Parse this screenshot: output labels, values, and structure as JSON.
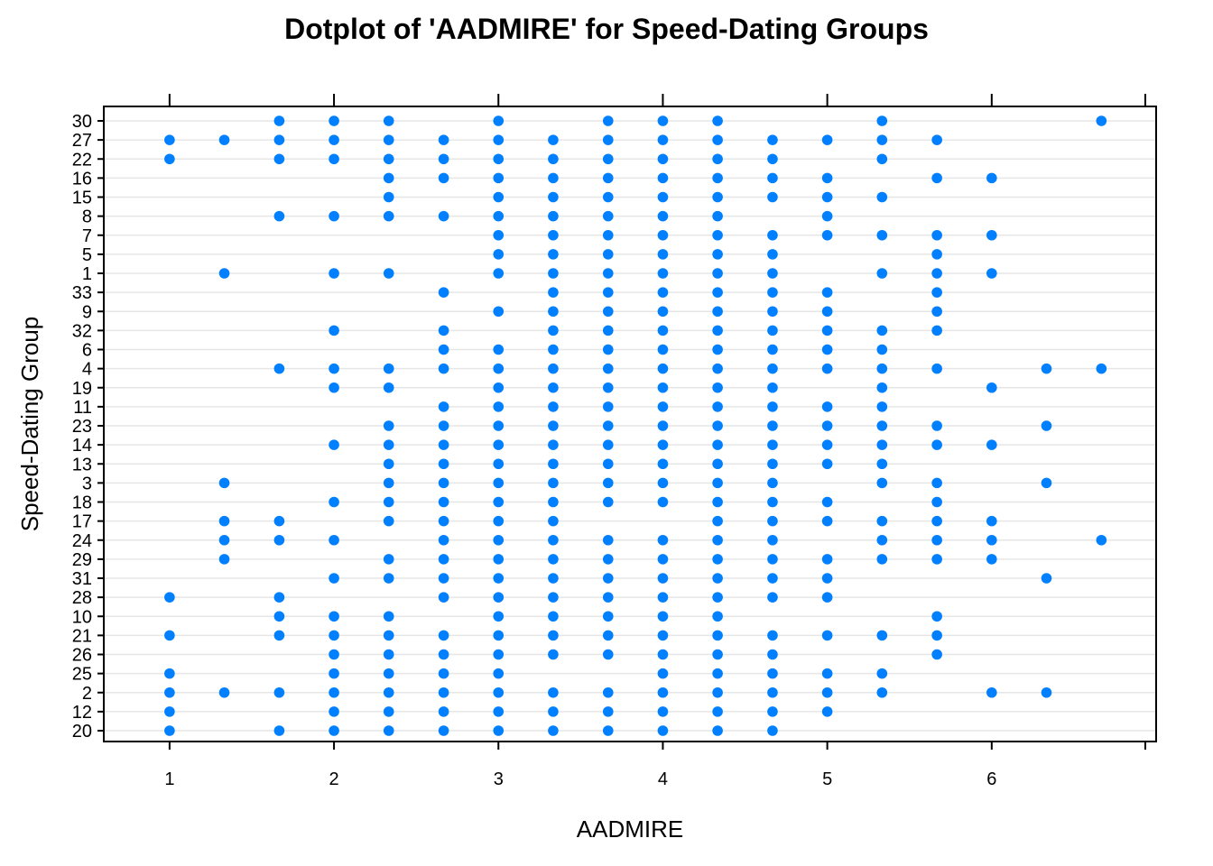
{
  "chart_data": {
    "type": "scatter",
    "title": "Dotplot of 'AADMIRE' for Speed-Dating Groups",
    "xlabel": "AADMIRE",
    "ylabel": "Speed-Dating Group",
    "xlim": [
      0.6,
      7.0
    ],
    "x_ticks": [
      1,
      2,
      3,
      4,
      5,
      6
    ],
    "grid": "horizontal",
    "point_color": "#0080ff",
    "categories": [
      "30",
      "27",
      "22",
      "16",
      "15",
      "8",
      "7",
      "5",
      "1",
      "33",
      "9",
      "32",
      "6",
      "4",
      "19",
      "11",
      "23",
      "14",
      "13",
      "3",
      "18",
      "17",
      "24",
      "29",
      "31",
      "28",
      "10",
      "21",
      "26",
      "25",
      "2",
      "12",
      "20"
    ],
    "series": [
      {
        "group": "30",
        "values": [
          1.667,
          2,
          2.333,
          3,
          3.667,
          4,
          4.333,
          5.333,
          6.667
        ]
      },
      {
        "group": "27",
        "values": [
          1,
          1.333,
          1.667,
          2,
          2.333,
          2.667,
          3,
          3.333,
          3.667,
          4,
          4.333,
          4.667,
          5,
          5.333,
          5.667
        ]
      },
      {
        "group": "22",
        "values": [
          1,
          1.667,
          2,
          2.333,
          2.667,
          3,
          3.333,
          3.667,
          4,
          4.333,
          4.667,
          5.333
        ]
      },
      {
        "group": "16",
        "values": [
          2.333,
          2.667,
          3,
          3.333,
          3.667,
          4,
          4.333,
          4.667,
          5,
          5.667,
          6
        ]
      },
      {
        "group": "15",
        "values": [
          2.333,
          3,
          3.333,
          3.667,
          4,
          4.333,
          4.667,
          5,
          5.333
        ]
      },
      {
        "group": "8",
        "values": [
          1.667,
          2,
          2.333,
          2.667,
          3,
          3.333,
          3.667,
          4,
          4.333,
          5
        ]
      },
      {
        "group": "7",
        "values": [
          3,
          3.333,
          3.667,
          4,
          4.333,
          4.667,
          5,
          5.333,
          5.667,
          6
        ]
      },
      {
        "group": "5",
        "values": [
          3,
          3.333,
          3.667,
          4,
          4.333,
          4.667,
          5.667
        ]
      },
      {
        "group": "1",
        "values": [
          1.333,
          2,
          2.333,
          3,
          3.333,
          3.667,
          4,
          4.333,
          4.667,
          5.333,
          5.667,
          6
        ]
      },
      {
        "group": "33",
        "values": [
          2.667,
          3.333,
          3.667,
          4,
          4.333,
          4.667,
          5,
          5.667
        ]
      },
      {
        "group": "9",
        "values": [
          3,
          3.333,
          3.667,
          4,
          4.333,
          4.667,
          5,
          5.667
        ]
      },
      {
        "group": "32",
        "values": [
          2,
          2.667,
          3.333,
          3.667,
          4,
          4.333,
          4.667,
          5,
          5.333,
          5.667
        ]
      },
      {
        "group": "6",
        "values": [
          2.667,
          3,
          3.333,
          3.667,
          4,
          4.333,
          4.667,
          5,
          5.333
        ]
      },
      {
        "group": "4",
        "values": [
          1.667,
          2,
          2.333,
          2.667,
          3,
          3.333,
          3.667,
          4,
          4.333,
          4.667,
          5,
          5.333,
          5.667,
          6.333,
          6.667
        ]
      },
      {
        "group": "19",
        "values": [
          2,
          2.333,
          3,
          3.333,
          3.667,
          4,
          4.333,
          4.667,
          5.333,
          6
        ]
      },
      {
        "group": "11",
        "values": [
          2.667,
          3,
          3.333,
          3.667,
          4,
          4.333,
          4.667,
          5,
          5.333
        ]
      },
      {
        "group": "23",
        "values": [
          2.333,
          2.667,
          3,
          3.333,
          3.667,
          4,
          4.333,
          4.667,
          5,
          5.333,
          5.667,
          6.333
        ]
      },
      {
        "group": "14",
        "values": [
          2,
          2.333,
          2.667,
          3,
          3.333,
          3.667,
          4,
          4.333,
          4.667,
          5,
          5.333,
          5.667,
          6
        ]
      },
      {
        "group": "13",
        "values": [
          2.333,
          2.667,
          3,
          3.333,
          3.667,
          4,
          4.333,
          4.667,
          5,
          5.333
        ]
      },
      {
        "group": "3",
        "values": [
          1.333,
          2.333,
          2.667,
          3,
          3.333,
          3.667,
          4,
          4.333,
          4.667,
          5.333,
          5.667,
          6.333
        ]
      },
      {
        "group": "18",
        "values": [
          2,
          2.333,
          2.667,
          3,
          3.333,
          3.667,
          4,
          4.333,
          4.667,
          5,
          5.667
        ]
      },
      {
        "group": "17",
        "values": [
          1.333,
          1.667,
          2.333,
          2.667,
          3,
          3.333,
          4.333,
          4.667,
          5,
          5.333,
          5.667,
          6
        ]
      },
      {
        "group": "24",
        "values": [
          1.333,
          1.667,
          2,
          2.667,
          3,
          3.333,
          3.667,
          4,
          4.333,
          4.667,
          5.333,
          5.667,
          6,
          6.667
        ]
      },
      {
        "group": "29",
        "values": [
          1.333,
          2.333,
          2.667,
          3,
          3.333,
          3.667,
          4,
          4.333,
          4.667,
          5,
          5.333,
          5.667,
          6
        ]
      },
      {
        "group": "31",
        "values": [
          2,
          2.333,
          2.667,
          3,
          3.333,
          3.667,
          4,
          4.333,
          4.667,
          5,
          6.333
        ]
      },
      {
        "group": "28",
        "values": [
          1,
          1.667,
          2.667,
          3,
          3.333,
          3.667,
          4,
          4.333,
          4.667,
          5
        ]
      },
      {
        "group": "10",
        "values": [
          1.667,
          2,
          2.333,
          3,
          3.333,
          3.667,
          4,
          4.333,
          5.667
        ]
      },
      {
        "group": "21",
        "values": [
          1,
          1.667,
          2,
          2.333,
          2.667,
          3,
          3.333,
          3.667,
          4,
          4.333,
          4.667,
          5,
          5.333,
          5.667
        ]
      },
      {
        "group": "26",
        "values": [
          2,
          2.333,
          2.667,
          3,
          3.333,
          3.667,
          4,
          4.333,
          4.667,
          5.667
        ]
      },
      {
        "group": "25",
        "values": [
          1,
          2,
          2.333,
          2.667,
          3,
          4,
          4.333,
          4.667,
          5,
          5.333
        ]
      },
      {
        "group": "2",
        "values": [
          1,
          1.333,
          1.667,
          2,
          2.333,
          2.667,
          3,
          3.333,
          3.667,
          4,
          4.333,
          4.667,
          5,
          5.333,
          6,
          6.333
        ]
      },
      {
        "group": "12",
        "values": [
          1,
          2,
          2.333,
          2.667,
          3,
          3.333,
          3.667,
          4,
          4.333,
          4.667,
          5
        ]
      },
      {
        "group": "20",
        "values": [
          1,
          1.667,
          2,
          2.333,
          2.667,
          3,
          3.333,
          3.667,
          4,
          4.333,
          4.667
        ]
      }
    ]
  }
}
